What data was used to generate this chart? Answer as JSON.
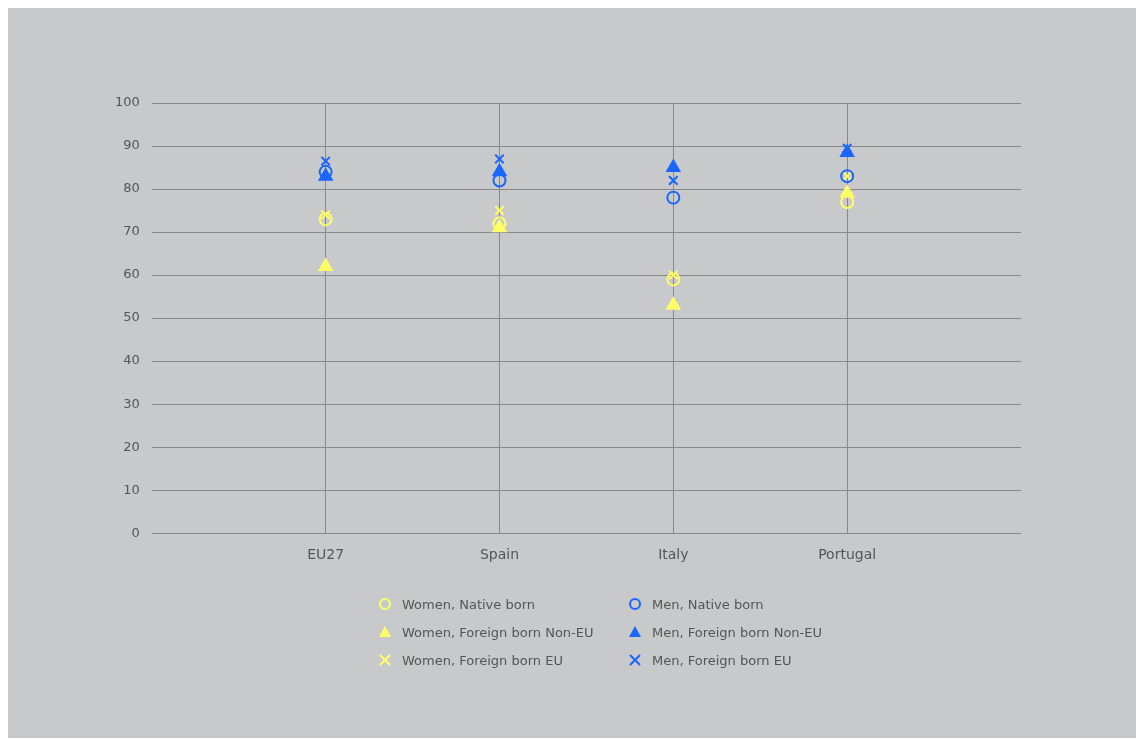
{
  "chart_data": {
    "type": "scatter",
    "categories": [
      "EU27",
      "Spain",
      "Italy",
      "Portugal"
    ],
    "ylim": [
      0,
      100
    ],
    "yticks": [
      0,
      10,
      20,
      30,
      40,
      50,
      60,
      70,
      80,
      90,
      100
    ],
    "grid": true,
    "legend": "bottom",
    "series": [
      {
        "name": "Women, Native born",
        "color": "#ffff66",
        "marker": "circle",
        "values": [
          73,
          72,
          59,
          77
        ]
      },
      {
        "name": "Men, Native born",
        "color": "#1a66ff",
        "marker": "circle",
        "values": [
          84,
          82,
          78,
          83
        ]
      },
      {
        "name": "Women, Foreign born Non-EU",
        "color": "#ffff66",
        "marker": "triangle",
        "values": [
          62,
          71,
          53,
          79
        ]
      },
      {
        "name": "Men, Foreign born Non-EU",
        "color": "#1a66ff",
        "marker": "triangle",
        "values": [
          83,
          84,
          85,
          88.5
        ]
      },
      {
        "name": "Women, Foreign born EU",
        "color": "#ffff66",
        "marker": "cross",
        "values": [
          74,
          75,
          60,
          83
        ]
      },
      {
        "name": "Men, Foreign born EU",
        "color": "#1a66ff",
        "marker": "cross",
        "values": [
          86.5,
          87,
          82,
          89.5
        ]
      }
    ]
  }
}
